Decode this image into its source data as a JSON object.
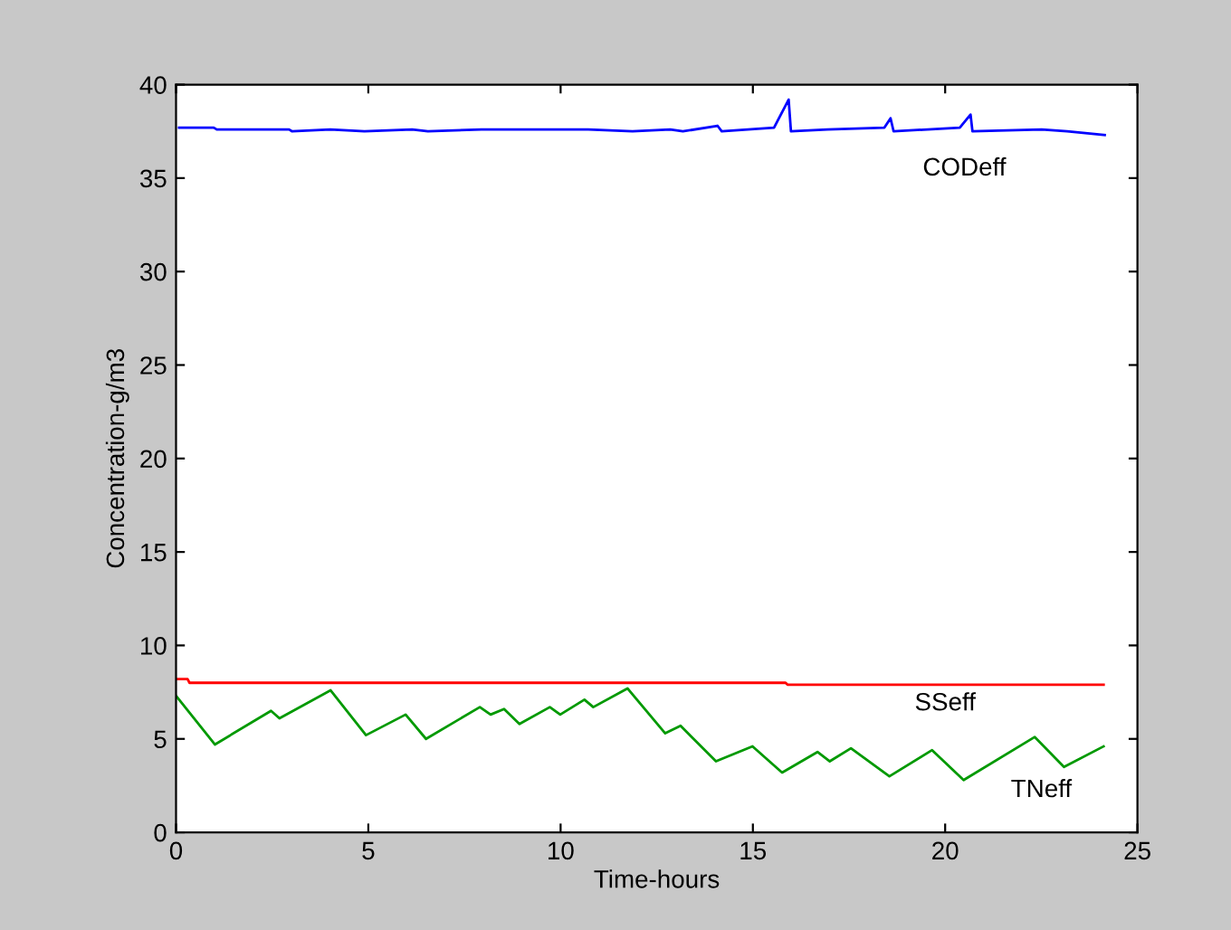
{
  "chart_data": {
    "type": "line",
    "xlabel": "Time-hours",
    "ylabel": "Concentration-g/m3",
    "xlim": [
      0,
      25
    ],
    "ylim": [
      0,
      40
    ],
    "xticks": [
      0,
      5,
      10,
      15,
      20,
      25
    ],
    "yticks": [
      0,
      5,
      10,
      15,
      20,
      25,
      30,
      35,
      40
    ],
    "grid": false,
    "legend": false,
    "marker": "none",
    "line_style": "solid",
    "series": [
      {
        "name": "CODeff",
        "color": "#0000ff",
        "x": [
          0.08,
          0.98,
          1.06,
          2.94,
          3.02,
          4.01,
          4.9,
          6.14,
          6.55,
          7.94,
          8.67,
          9.9,
          10.72,
          11.87,
          12.85,
          13.18,
          14.08,
          14.19,
          15.55,
          15.93,
          15.99,
          16.94,
          18.42,
          18.58,
          18.66,
          20.38,
          20.66,
          20.71,
          22.51,
          23.17,
          24.15
        ],
        "values": [
          37.7,
          37.7,
          37.6,
          37.6,
          37.5,
          37.6,
          37.5,
          37.6,
          37.5,
          37.6,
          37.6,
          37.6,
          37.6,
          37.5,
          37.6,
          37.5,
          37.8,
          37.5,
          37.7,
          39.2,
          37.5,
          37.6,
          37.7,
          38.2,
          37.5,
          37.7,
          38.4,
          37.5,
          37.6,
          37.5,
          37.3
        ]
      },
      {
        "name": "SSeff",
        "color": "#ff0000",
        "x": [
          0,
          0.3,
          0.35,
          15.85,
          15.9,
          24.12
        ],
        "values": [
          8.2,
          8.2,
          8.0,
          8.0,
          7.9,
          7.9
        ]
      },
      {
        "name": "TNeff",
        "color": "#009900",
        "x": [
          0,
          1.01,
          2.47,
          2.69,
          4.02,
          4.94,
          5.97,
          6.5,
          7.9,
          8.18,
          8.53,
          8.93,
          9.72,
          9.99,
          10.62,
          10.85,
          11.74,
          12.72,
          13.12,
          14.04,
          14.99,
          15.76,
          16.68,
          17.0,
          17.55,
          18.55,
          19.66,
          20.48,
          22.33,
          23.09,
          24.12
        ],
        "values": [
          7.3,
          4.7,
          6.5,
          6.1,
          7.6,
          5.2,
          6.3,
          5.0,
          6.7,
          6.3,
          6.6,
          5.8,
          6.7,
          6.3,
          7.1,
          6.7,
          7.7,
          5.3,
          5.7,
          3.8,
          4.6,
          3.2,
          4.3,
          3.8,
          4.5,
          3.0,
          4.4,
          2.8,
          5.1,
          3.5,
          4.6
        ]
      }
    ]
  }
}
